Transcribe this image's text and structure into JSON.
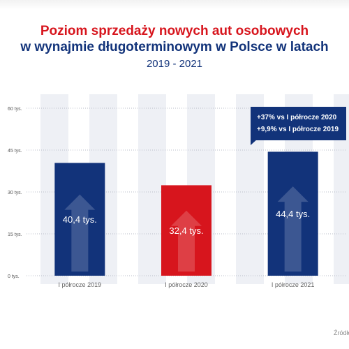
{
  "title": {
    "line1": "Poziom sprzedaży nowych aut osobowych",
    "line2": "w wynajmie długoterminowym w Polsce w latach",
    "line3": "2019 - 2021"
  },
  "chart_data": {
    "type": "bar",
    "categories": [
      "I półrocze 2019",
      "I półrocze 2020",
      "I półrocze 2021"
    ],
    "values": [
      40.4,
      32.4,
      44.4
    ],
    "value_labels": [
      "40,4 tys.",
      "32,4 tys.",
      "44,4 tys."
    ],
    "yticks": [
      0,
      15,
      30,
      45,
      60
    ],
    "ytick_labels": [
      "0 tys.",
      "15 tys.",
      "30 tys.",
      "45 tys.",
      "60 tys."
    ],
    "ylim": [
      0,
      65
    ],
    "bar_colors": [
      "#12337a",
      "#d7151d",
      "#12337a"
    ],
    "grid": true,
    "annotation": {
      "lines": [
        "+37% vs I półrocze 2020",
        "+9,9% vs I półrocze 2019"
      ]
    }
  },
  "source_label": "Źródło"
}
